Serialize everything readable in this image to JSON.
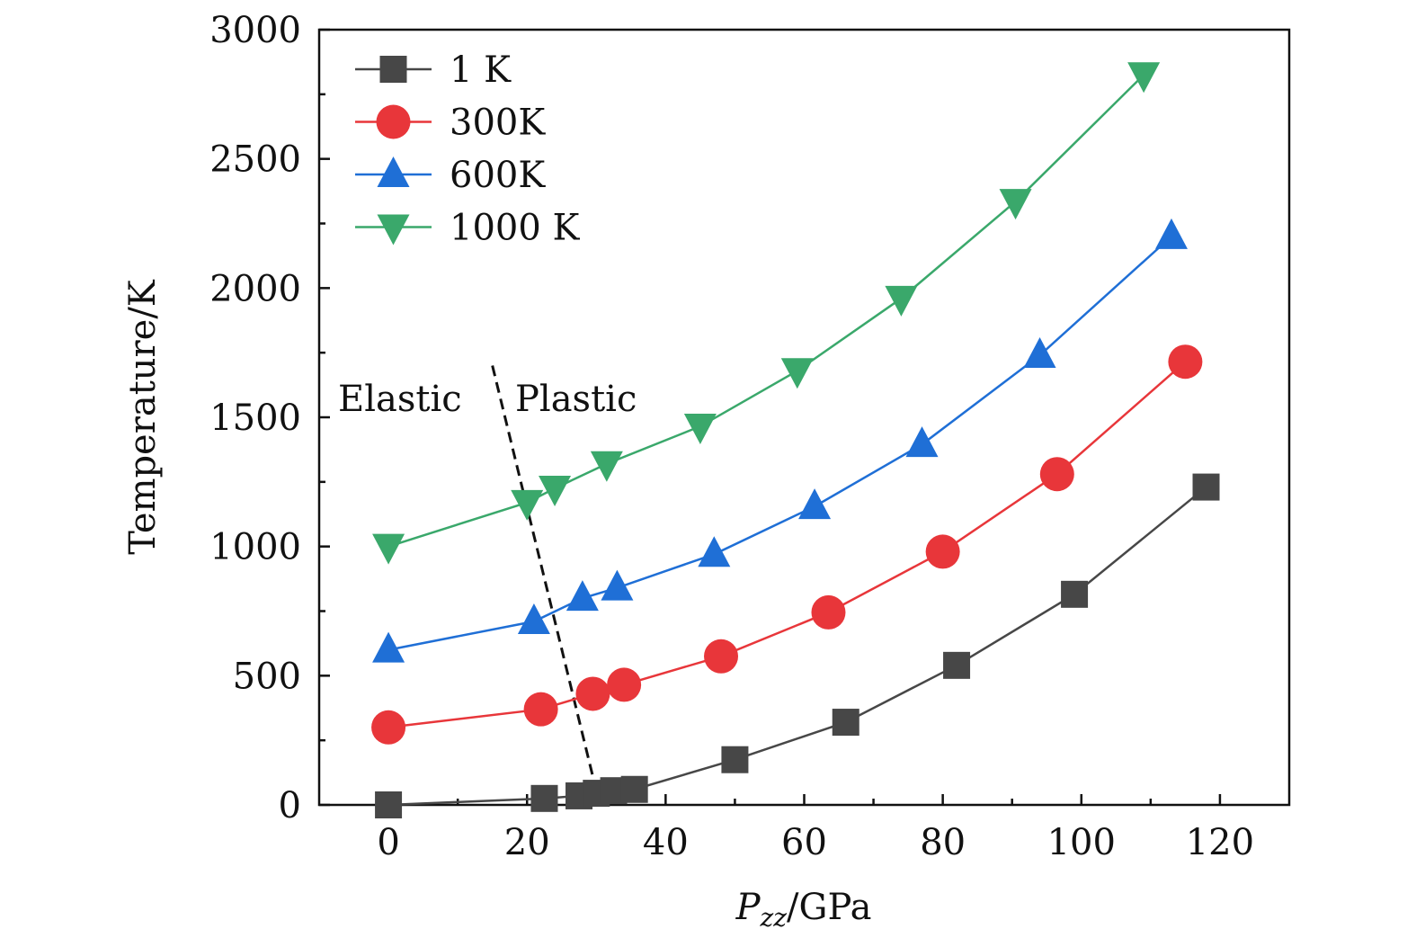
{
  "chart_data": {
    "type": "line",
    "title": "",
    "xlabel_italic": "P",
    "xlabel_sub": "zz",
    "xlabel_unit": "/GPa",
    "ylabel": "Temperature/K",
    "xlim": [
      -10,
      130
    ],
    "ylim": [
      0,
      3000
    ],
    "x_ticks": [
      0,
      20,
      40,
      60,
      80,
      100,
      120
    ],
    "x_tick_labels": [
      "0",
      "20",
      "40",
      "60",
      "80",
      "100",
      "120"
    ],
    "x_minor_ticks": [
      -10,
      10,
      30,
      50,
      70,
      90,
      110,
      130
    ],
    "y_ticks": [
      0,
      500,
      1000,
      1500,
      2000,
      2500,
      3000
    ],
    "y_tick_labels": [
      "0",
      "500",
      "1000",
      "1500",
      "2000",
      "2500",
      "3000"
    ],
    "y_minor_ticks": [
      250,
      750,
      1250,
      1750,
      2250,
      2750
    ],
    "legend_position": "top-left",
    "series": [
      {
        "name": "1 K",
        "marker": "square",
        "color": "#474747",
        "x": [
          0,
          22.5,
          27.5,
          30,
          32.5,
          35.5,
          50,
          66,
          82,
          99,
          118
        ],
        "y": [
          0,
          25,
          35,
          45,
          55,
          60,
          175,
          320,
          540,
          815,
          1230
        ]
      },
      {
        "name": "300K",
        "marker": "circle",
        "color": "#e8363a",
        "x": [
          0,
          22,
          29.5,
          34,
          48,
          63.5,
          80,
          96.5,
          115
        ],
        "y": [
          300,
          370,
          430,
          465,
          575,
          745,
          980,
          1280,
          1715
        ]
      },
      {
        "name": "600K",
        "marker": "triangle-up",
        "color": "#1f6fd6",
        "x": [
          0,
          21,
          28,
          33,
          47,
          61.5,
          77,
          94,
          113
        ],
        "y": [
          600,
          710,
          800,
          840,
          970,
          1155,
          1395,
          1740,
          2200
        ]
      },
      {
        "name": "1000 K",
        "marker": "triangle-down",
        "color": "#3aa86b",
        "x": [
          0,
          20,
          24,
          31.5,
          45,
          59,
          74,
          90.5,
          109
        ],
        "y": [
          1000,
          1170,
          1225,
          1320,
          1465,
          1680,
          1960,
          2335,
          2825
        ]
      }
    ],
    "annotations": {
      "left_label": "Elastic",
      "right_label": "Plastic",
      "divider": {
        "x1": 15,
        "y1": 1700,
        "x2": 30.5,
        "y2": 0
      }
    }
  }
}
